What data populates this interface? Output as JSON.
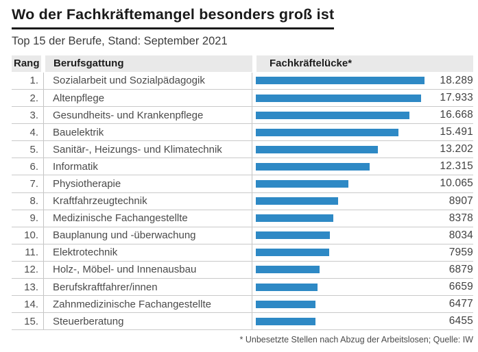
{
  "title": "Wo der Fachkräftemangel besonders groß ist",
  "subtitle": "Top 15 der Berufe, Stand: September 2021",
  "columns": {
    "rank": "Rang",
    "profession": "Berufsgattung",
    "gap": "Fachkräftelücke*"
  },
  "footnote": "* Unbesetzte Stellen nach Abzug der Arbeitslosen; Quelle: IW",
  "colors": {
    "bar": "#2e89c5",
    "header_bg": "#e9e9e9",
    "title_text": "#1a1a1a",
    "body_text": "#4a4a4a",
    "separator": "#c9c9c9"
  },
  "chart_data": {
    "type": "bar",
    "orientation": "horizontal",
    "title": "Wo der Fachkräftemangel besonders groß ist",
    "subtitle": "Top 15 der Berufe, Stand: September 2021",
    "xlabel": "Fachkräftelücke*",
    "ylabel": "Berufsgattung",
    "xlim": [
      0,
      18289
    ],
    "grid": false,
    "legend": false,
    "ranks": [
      "1.",
      "2.",
      "3.",
      "4.",
      "5.",
      "6.",
      "7.",
      "8.",
      "9.",
      "10.",
      "11.",
      "12.",
      "13.",
      "14.",
      "15."
    ],
    "categories": [
      "Sozialarbeit und Sozialpädagogik",
      "Altenpflege",
      "Gesundheits- und Krankenpflege",
      "Bauelektrik",
      "Sanitär-, Heizungs- und Klimatechnik",
      "Informatik",
      "Physiotherapie",
      "Kraftfahrzeugtechnik",
      "Medizinische Fachangestellte",
      "Bauplanung und -überwachung",
      "Elektrotechnik",
      "Holz-, Möbel- und Innenausbau",
      "Berufskraftfahrer/innen",
      "Zahnmedizinische Fachangestellte",
      "Steuerberatung"
    ],
    "values": [
      18289,
      17933,
      16668,
      15491,
      13202,
      12315,
      10065,
      8907,
      8378,
      8034,
      7959,
      6879,
      6659,
      6477,
      6455
    ],
    "value_labels": [
      "18.289",
      "17.933",
      "16.668",
      "15.491",
      "13.202",
      "12.315",
      "10.065",
      "8907",
      "8378",
      "8034",
      "7959",
      "6879",
      "6659",
      "6477",
      "6455"
    ]
  }
}
